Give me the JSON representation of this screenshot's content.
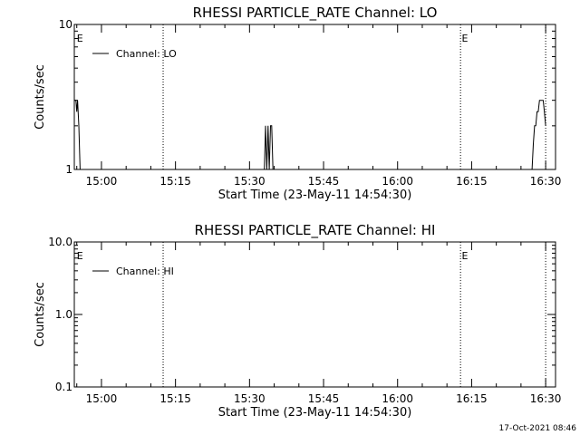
{
  "footer_timestamp": "17-Oct-2021 08:46",
  "chart_data": [
    {
      "type": "line",
      "title": "RHESSI PARTICLE_RATE Channel: LO",
      "xlabel": "Start Time (23-May-11 14:54:30)",
      "ylabel": "Counts/sec",
      "yscale": "log",
      "ylim": [
        1,
        10
      ],
      "ytick_values": [
        1,
        10
      ],
      "ytick_labels": [
        "1",
        "10"
      ],
      "xlim": [
        "14:54:30",
        "16:32:00"
      ],
      "xtick_values": [
        "15:00",
        "15:15",
        "15:30",
        "15:45",
        "16:00",
        "16:15",
        "16:30"
      ],
      "xtick_labels": [
        "15:00",
        "15:15",
        "15:30",
        "15:45",
        "16:00",
        "16:15",
        "16:30"
      ],
      "event_lines": [
        "15:12:30",
        "16:12:45",
        "16:30:00"
      ],
      "event_markers": [
        {
          "time": "14:55:00",
          "label": "E"
        },
        {
          "time": "16:13:00",
          "label": "E"
        }
      ],
      "legend": {
        "position": "top-left",
        "entries": [
          "Channel: LO"
        ]
      },
      "series": [
        {
          "name": "Channel: LO",
          "points": [
            [
              "14:54:30",
              3
            ],
            [
              "14:54:50",
              3
            ],
            [
              "14:55:00",
              2.5
            ],
            [
              "14:55:10",
              3
            ],
            [
              "14:55:25",
              2
            ],
            [
              "14:55:40",
              1
            ],
            [
              "15:33:00",
              1
            ],
            [
              "15:33:15",
              2
            ],
            [
              "15:33:30",
              1
            ],
            [
              "15:33:45",
              2
            ],
            [
              "15:34:00",
              1
            ],
            [
              "15:34:15",
              2
            ],
            [
              "15:34:30",
              2
            ],
            [
              "15:34:45",
              1
            ],
            [
              "16:27:15",
              1
            ],
            [
              "16:27:30",
              1.5
            ],
            [
              "16:27:45",
              2
            ],
            [
              "16:28:00",
              2
            ],
            [
              "16:28:15",
              2.5
            ],
            [
              "16:28:30",
              2.5
            ],
            [
              "16:28:45",
              3
            ],
            [
              "16:29:30",
              3
            ],
            [
              "16:29:45",
              2.5
            ],
            [
              "16:30:00",
              2
            ]
          ]
        }
      ]
    },
    {
      "type": "line",
      "title": "RHESSI PARTICLE_RATE Channel: HI",
      "xlabel": "Start Time (23-May-11 14:54:30)",
      "ylabel": "Counts/sec",
      "yscale": "log",
      "ylim": [
        0.1,
        10
      ],
      "ytick_values": [
        0.1,
        1,
        10
      ],
      "ytick_labels": [
        "0.1",
        "1.0",
        "10.0"
      ],
      "xlim": [
        "14:54:30",
        "16:32:00"
      ],
      "xtick_values": [
        "15:00",
        "15:15",
        "15:30",
        "15:45",
        "16:00",
        "16:15",
        "16:30"
      ],
      "xtick_labels": [
        "15:00",
        "15:15",
        "15:30",
        "15:45",
        "16:00",
        "16:15",
        "16:30"
      ],
      "event_lines": [
        "15:12:30",
        "16:12:45",
        "16:30:00"
      ],
      "event_markers": [
        {
          "time": "14:55:00",
          "label": "E"
        },
        {
          "time": "16:13:00",
          "label": "E"
        }
      ],
      "legend": {
        "position": "top-left",
        "entries": [
          "Channel: HI"
        ]
      },
      "series": [
        {
          "name": "Channel: HI",
          "points": []
        }
      ]
    }
  ]
}
